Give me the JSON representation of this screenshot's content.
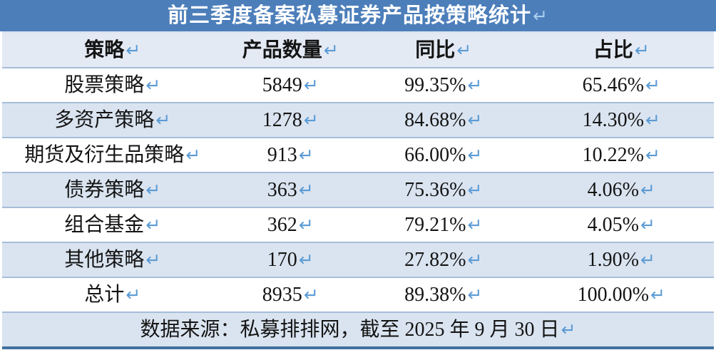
{
  "title": {
    "text": "前三季度备案私募证券产品按策略统计"
  },
  "marks": {
    "return": "↵"
  },
  "table": {
    "columns": [
      {
        "label": "策略"
      },
      {
        "label": "产品数量"
      },
      {
        "label": "同比"
      },
      {
        "label": "占比"
      }
    ],
    "rows": [
      {
        "strategy": "股票策略",
        "count": "5849",
        "yoy": "99.35%",
        "share": "65.46%"
      },
      {
        "strategy": "多资产策略",
        "count": "1278",
        "yoy": "84.68%",
        "share": "14.30%"
      },
      {
        "strategy": "期货及衍生品策略",
        "count": "913",
        "yoy": "66.00%",
        "share": "10.22%"
      },
      {
        "strategy": "债券策略",
        "count": "363",
        "yoy": "75.36%",
        "share": "4.06%"
      },
      {
        "strategy": "组合基金",
        "count": "362",
        "yoy": "79.21%",
        "share": "4.05%"
      },
      {
        "strategy": "其他策略",
        "count": "170",
        "yoy": "27.82%",
        "share": "1.90%"
      },
      {
        "strategy": "总计",
        "count": "8935",
        "yoy": "89.38%",
        "share": "100.00%"
      }
    ],
    "footer": "数据来源：私募排排网，截至 2025 年 9 月 30 日"
  },
  "colors": {
    "title_bg": "#4C7EBA",
    "header_bg": "#E4EAF4",
    "alt_row_bg": "#DAE4F0",
    "row_border": "#A6BDD9",
    "bottom_border": "#40719F",
    "mark_blue": "#5B9BD5",
    "title_mark": "#A9CDEE"
  }
}
